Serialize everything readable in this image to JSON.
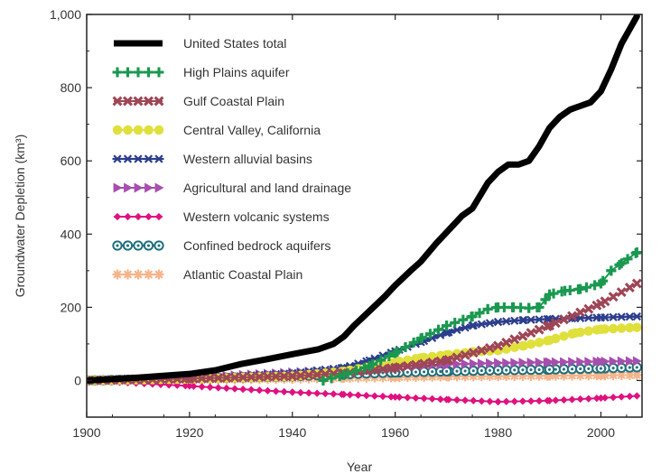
{
  "chart_data": {
    "type": "line",
    "xlabel": "Year",
    "ylabel": "Groundwater Depletion (km³)",
    "xlim": [
      1900,
      2008
    ],
    "ylim": [
      -100,
      1000
    ],
    "xticks": [
      1900,
      1920,
      1940,
      1960,
      1980,
      2000
    ],
    "yticks": [
      0,
      200,
      400,
      600,
      800,
      1000
    ],
    "ytick_labels": [
      "0",
      "200",
      "400",
      "600",
      "800",
      "1,000"
    ],
    "grid": false,
    "legend_position": "top-left",
    "series": [
      {
        "name": "United States total",
        "color": "#000000",
        "marker": "line",
        "x": [
          1900,
          1910,
          1920,
          1925,
          1930,
          1935,
          1940,
          1945,
          1948,
          1950,
          1952,
          1955,
          1958,
          1960,
          1963,
          1965,
          1968,
          1970,
          1973,
          1975,
          1978,
          1980,
          1982,
          1984,
          1986,
          1988,
          1990,
          1992,
          1994,
          1996,
          1998,
          2000,
          2002,
          2004,
          2007
        ],
        "y": [
          0,
          8,
          18,
          28,
          45,
          58,
          72,
          85,
          100,
          120,
          150,
          190,
          230,
          260,
          300,
          325,
          375,
          405,
          450,
          470,
          540,
          570,
          590,
          590,
          600,
          640,
          690,
          720,
          740,
          750,
          760,
          790,
          850,
          920,
          995
        ]
      },
      {
        "name": "High Plains aquifer",
        "color": "#1a9850",
        "marker": "plus",
        "x": [
          1946,
          1950,
          1955,
          1960,
          1965,
          1970,
          1975,
          1978,
          1980,
          1983,
          1986,
          1988,
          1990,
          1993,
          1996,
          2000,
          2002,
          2004,
          2007
        ],
        "y": [
          0,
          15,
          40,
          75,
          115,
          150,
          175,
          195,
          200,
          200,
          198,
          200,
          235,
          245,
          250,
          265,
          300,
          320,
          350
        ]
      },
      {
        "name": "Gulf Coastal Plain",
        "color": "#9e4656",
        "marker": "x",
        "x": [
          1900,
          1920,
          1940,
          1950,
          1960,
          1970,
          1980,
          1990,
          2000,
          2007
        ],
        "y": [
          0,
          5,
          12,
          20,
          35,
          55,
          95,
          150,
          210,
          265
        ]
      },
      {
        "name": "Central Valley, California",
        "color": "#e0e03c",
        "marker": "circle",
        "x": [
          1900,
          1920,
          1940,
          1950,
          1960,
          1965,
          1970,
          1975,
          1980,
          1985,
          1990,
          1995,
          2000,
          2007
        ],
        "y": [
          0,
          4,
          12,
          25,
          50,
          62,
          70,
          78,
          82,
          95,
          110,
          130,
          140,
          145
        ]
      },
      {
        "name": "Western alluvial basins",
        "color": "#2c3e8c",
        "marker": "star",
        "x": [
          1900,
          1920,
          1940,
          1950,
          1955,
          1960,
          1965,
          1970,
          1975,
          1980,
          1985,
          1990,
          1995,
          2000,
          2007
        ],
        "y": [
          0,
          5,
          20,
          35,
          55,
          80,
          105,
          130,
          150,
          160,
          165,
          168,
          170,
          172,
          175
        ]
      },
      {
        "name": "Agricultural and land drainage",
        "color": "#a64fae",
        "marker": "triangle",
        "x": [
          1900,
          1920,
          1940,
          1950,
          1960,
          1970,
          1980,
          1990,
          2000,
          2007
        ],
        "y": [
          0,
          8,
          22,
          30,
          38,
          44,
          48,
          50,
          52,
          53
        ]
      },
      {
        "name": "Western volcanic systems",
        "color": "#e0117f",
        "marker": "diamond",
        "x": [
          1900,
          1920,
          1940,
          1950,
          1960,
          1970,
          1980,
          1990,
          2000,
          2007
        ],
        "y": [
          0,
          -15,
          -32,
          -38,
          -45,
          -52,
          -58,
          -55,
          -48,
          -42
        ]
      },
      {
        "name": "Confined bedrock aquifers",
        "color": "#1f6f7c",
        "marker": "ring",
        "x": [
          1900,
          1920,
          1940,
          1950,
          1960,
          1970,
          1980,
          1990,
          2000,
          2007
        ],
        "y": [
          0,
          5,
          12,
          17,
          22,
          25,
          28,
          30,
          33,
          36
        ]
      },
      {
        "name": "Atlantic Coastal Plain",
        "color": "#f5b48a",
        "marker": "asterisk",
        "x": [
          1900,
          1920,
          1940,
          1950,
          1960,
          1970,
          1980,
          1990,
          2000,
          2007
        ],
        "y": [
          0,
          2,
          5,
          7,
          9,
          11,
          12,
          13,
          14,
          15
        ]
      }
    ]
  }
}
